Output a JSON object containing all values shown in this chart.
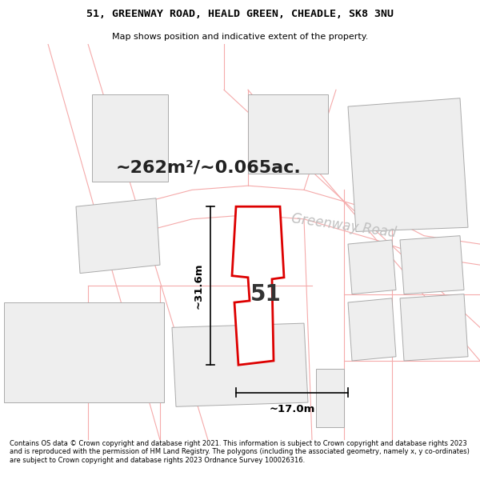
{
  "title_line1": "51, GREENWAY ROAD, HEALD GREEN, CHEADLE, SK8 3NU",
  "title_line2": "Map shows position and indicative extent of the property.",
  "area_text": "~262m²/~0.065ac.",
  "road_label": "Greenway Road",
  "plot_number": "51",
  "dim_width": "~17.0m",
  "dim_height": "~31.6m",
  "footer_text": "Contains OS data © Crown copyright and database right 2021. This information is subject to Crown copyright and database rights 2023 and is reproduced with the permission of HM Land Registry. The polygons (including the associated geometry, namely x, y co-ordinates) are subject to Crown copyright and database rights 2023 Ordnance Survey 100026316.",
  "bg_color": "#ffffff",
  "map_bg": "#ffffff",
  "building_fill": "#eeeeee",
  "building_edge": "#aaaaaa",
  "road_color": "#f5aaaa",
  "highlight_color": "#dd0000",
  "highlight_fill": "#ffffff",
  "dim_color": "#000000",
  "road_text_color": "#bbbbbb",
  "area_text_color": "#222222"
}
